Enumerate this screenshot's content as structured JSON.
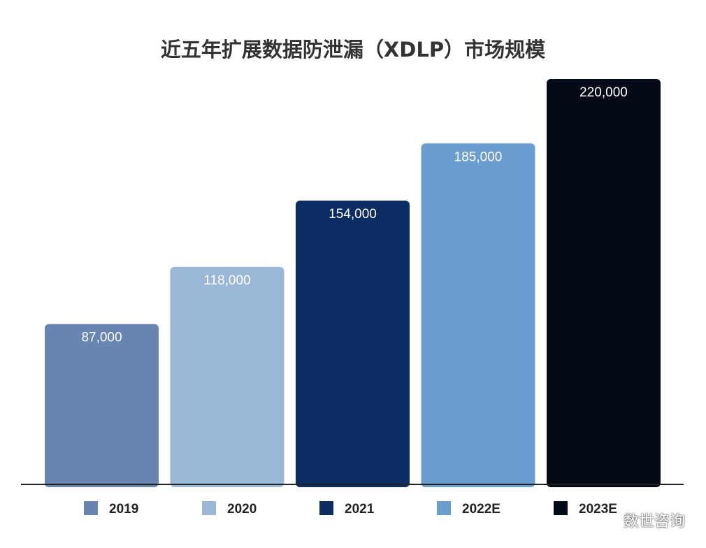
{
  "chart_data": {
    "type": "bar",
    "title": "近五年扩展数据防泄漏（XDLP）市场规模",
    "categories": [
      "2019",
      "2020",
      "2021",
      "2022E",
      "2023E"
    ],
    "values": [
      87000,
      118000,
      154000,
      185000,
      220000
    ],
    "value_labels": [
      "87,000",
      "118,000",
      "154,000",
      "185,000",
      "220,000"
    ],
    "colors": [
      "#6784b2",
      "#9ab7d8",
      "#0b2d63",
      "#6b9ed0",
      "#050a17"
    ],
    "ylim": [
      0,
      220000
    ],
    "xlabel": "",
    "ylabel": "",
    "legend_position": "bottom",
    "grid": false
  },
  "watermark": {
    "text": "数世咨询",
    "icon": "wechat-icon"
  }
}
